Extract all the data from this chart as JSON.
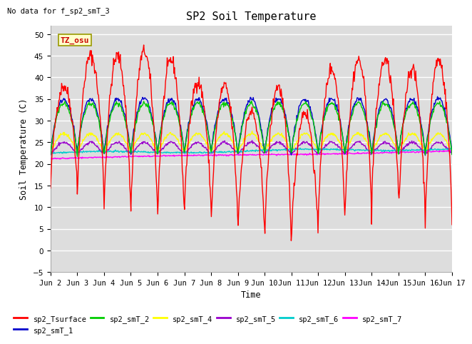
{
  "title": "SP2 Soil Temperature",
  "no_data_text": "No data for f_sp2_smT_3",
  "tz_label": "TZ_osu",
  "ylabel": "Soil Temperature (C)",
  "xlabel": "Time",
  "ylim": [
    -5,
    52
  ],
  "yticks": [
    -5,
    0,
    5,
    10,
    15,
    20,
    25,
    30,
    35,
    40,
    45,
    50
  ],
  "xtick_labels": [
    "Jun 2",
    "Jun 3",
    "Jun 4",
    "Jun 5",
    "Jun 6",
    "Jun 7",
    "Jun 8",
    "Jun 9",
    "Jun 10",
    "Jun 11",
    "Jun 12",
    "Jun 13",
    "Jun 14",
    "Jun 15",
    "Jun 16",
    "Jun 17"
  ],
  "series_colors": {
    "sp2_Tsurface": "#ff0000",
    "sp2_smT_1": "#0000cc",
    "sp2_smT_2": "#00cc00",
    "sp2_smT_4": "#ffff00",
    "sp2_smT_5": "#9900cc",
    "sp2_smT_6": "#00cccc",
    "sp2_smT_7": "#ff00ff"
  },
  "fig_bg_color": "#ffffff",
  "plot_bg_color": "#dddddd",
  "grid_color": "#ffffff",
  "n_points": 720,
  "n_days": 15
}
